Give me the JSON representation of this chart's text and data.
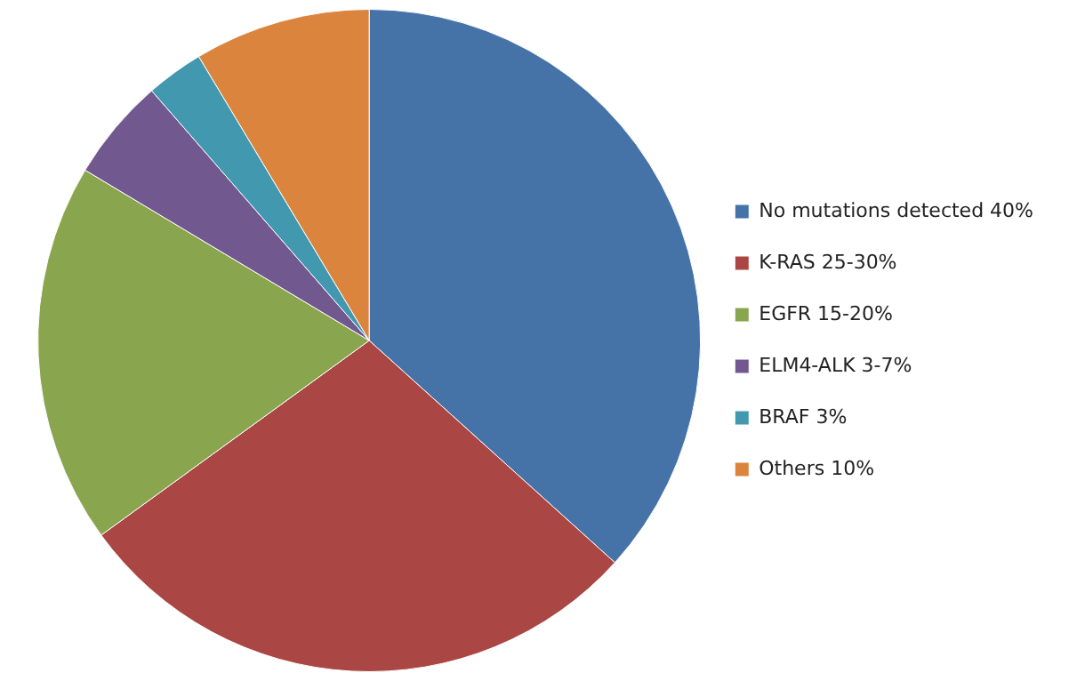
{
  "chart_data": {
    "type": "pie",
    "categories": [
      "No mutations detected 40%",
      "K-RAS 25-30%",
      "EGFR 15-20%",
      "ELM4-ALK 3-7%",
      "BRAF 3%",
      "Others 10%"
    ],
    "values": [
      36.7,
      28.3,
      18.6,
      5,
      2.8,
      8.6
    ],
    "colors": [
      "#4572a7",
      "#aa4643",
      "#89a54e",
      "#71588f",
      "#4198af",
      "#db843d"
    ],
    "legend": "right"
  }
}
